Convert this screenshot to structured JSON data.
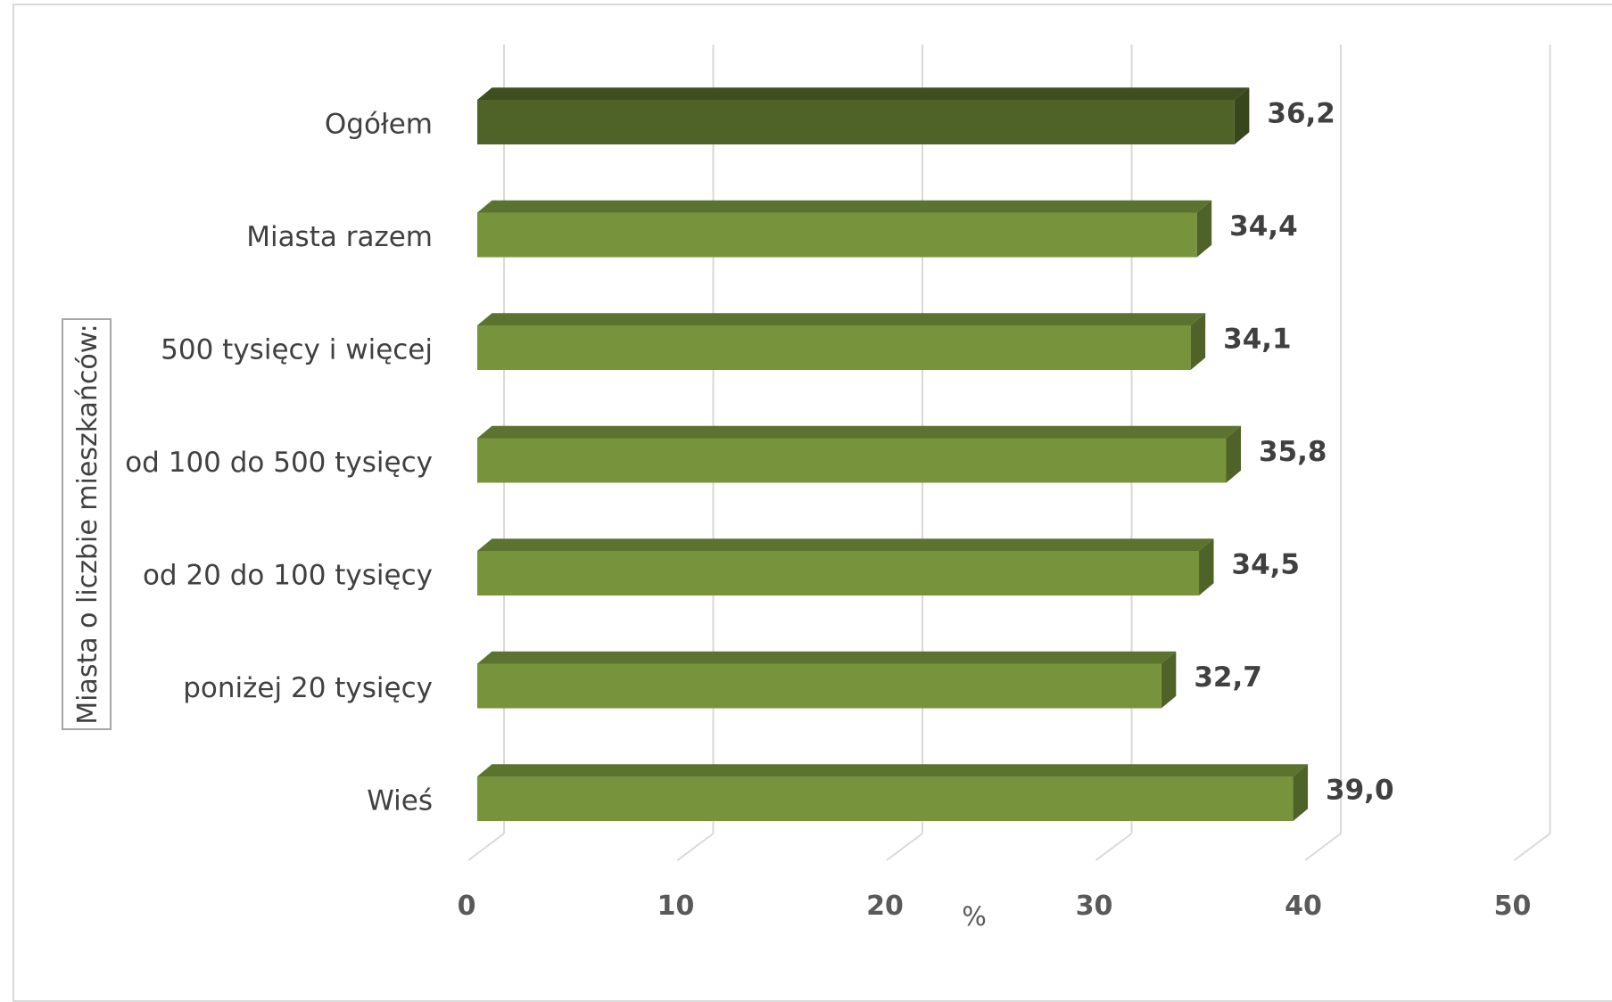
{
  "chart_data": {
    "type": "bar",
    "orientation": "horizontal",
    "categories": [
      "Ogółem",
      "Miasta razem",
      "500 tysięcy i więcej",
      "od 100 do 500 tysięcy",
      "od 20 do 100 tysięcy",
      "poniżej 20 tysięcy",
      "Wieś"
    ],
    "values": [
      36.2,
      34.4,
      34.1,
      35.8,
      34.5,
      32.7,
      39.0
    ],
    "value_labels": [
      "36,2",
      "34,4",
      "34,1",
      "35,8",
      "34,5",
      "32,7",
      "39,0"
    ],
    "xlabel": "%",
    "group_label": "Miasta o liczbie mieszkańców:",
    "xlim": [
      0,
      50
    ],
    "xticks": [
      "0",
      "10",
      "20",
      "30",
      "40",
      "50"
    ],
    "grid": true,
    "three_d": true,
    "colors": {
      "highlight_front": "#4f6228",
      "highlight_top": "#3e4e1f",
      "highlight_side": "#37461b",
      "bar_front": "#77933c",
      "bar_top": "#5c7330",
      "bar_side": "#4f6228",
      "grid": "#d9d9d9"
    }
  }
}
